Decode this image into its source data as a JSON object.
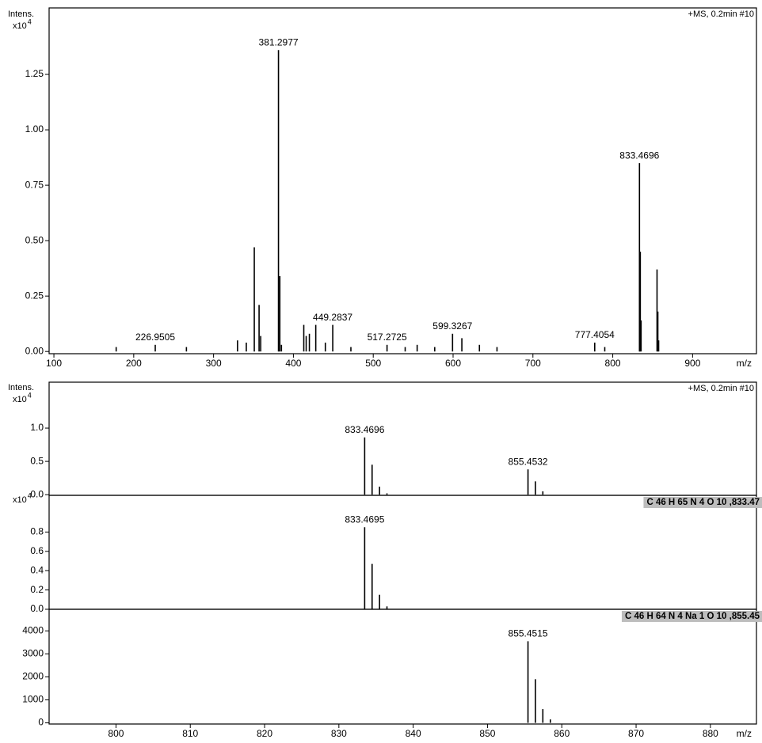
{
  "chart_data": [
    {
      "type": "stem",
      "subtitle": "+MS, 0.2min #10",
      "ylabel": "Intens.",
      "yunit": {
        "base": "x10",
        "exponent": 4
      },
      "xlabel": "m/z",
      "color": "#000000",
      "x": [
        178,
        226.9505,
        266,
        330,
        341,
        351,
        357,
        359,
        381.2977,
        383,
        385,
        413,
        416,
        420,
        428,
        440,
        449.2837,
        472,
        517.2725,
        540,
        555,
        577,
        599.3267,
        611,
        633,
        655,
        777.4054,
        790,
        833.4696,
        834.5,
        835.5,
        855.4532,
        856.5,
        857.5
      ],
      "x_labels": [
        null,
        "226.9505",
        null,
        null,
        null,
        null,
        null,
        null,
        "381.2977",
        null,
        null,
        null,
        null,
        null,
        null,
        null,
        "449.2837",
        null,
        "517.2725",
        null,
        null,
        null,
        "599.3267",
        null,
        null,
        null,
        "777.4054",
        null,
        "833.4696",
        null,
        null,
        null,
        null,
        null
      ],
      "values": [
        0.02,
        0.03,
        0.02,
        0.05,
        0.04,
        0.47,
        0.21,
        0.07,
        1.36,
        0.34,
        0.03,
        0.12,
        0.07,
        0.08,
        0.12,
        0.04,
        0.12,
        0.02,
        0.03,
        0.02,
        0.03,
        0.02,
        0.08,
        0.06,
        0.03,
        0.02,
        0.04,
        0.02,
        0.85,
        0.45,
        0.14,
        0.37,
        0.18,
        0.05
      ],
      "xlim": [
        94,
        980
      ],
      "xticks": [
        100,
        200,
        300,
        400,
        500,
        600,
        700,
        800,
        900
      ],
      "ylim": [
        -0.01,
        1.55
      ],
      "yticks": [
        {
          "value": 0,
          "label": "0.00"
        },
        {
          "value": 0.25,
          "label": "0.25"
        },
        {
          "value": 0.5,
          "label": "0.50"
        },
        {
          "value": 0.75,
          "label": "0.75"
        },
        {
          "value": 1,
          "label": "1.00"
        },
        {
          "value": 1.25,
          "label": "1.25"
        }
      ]
    },
    {
      "type": "stem",
      "subtitle": "+MS, 0.2min #10",
      "ylabel": "Intens.",
      "yunit": {
        "base": "x10",
        "exponent": 4
      },
      "color": "#000000",
      "x": [
        833.4696,
        834.47,
        835.47,
        836.47,
        855.4532,
        856.45,
        857.45
      ],
      "x_labels": [
        "833.4696",
        null,
        null,
        null,
        "855.4532",
        null,
        null
      ],
      "values": [
        0.86,
        0.45,
        0.12,
        0.02,
        0.38,
        0.2,
        0.05
      ],
      "xlim": [
        791,
        886.2
      ],
      "ylim": [
        -0.01,
        1.69
      ],
      "yticks": [
        {
          "value": 0,
          "label": "0.0"
        },
        {
          "value": 0.5,
          "label": "0.5"
        },
        {
          "value": 1,
          "label": "1.0"
        }
      ]
    },
    {
      "type": "stem",
      "title": "C 46 H 65 N 4 O 10 ,833.47",
      "yunit": {
        "base": "x10",
        "exponent": 4
      },
      "color": "#000000",
      "x": [
        833.4695,
        834.47,
        835.47,
        836.47
      ],
      "x_labels": [
        "833.4695",
        null,
        null,
        null
      ],
      "values": [
        0.85,
        0.47,
        0.15,
        0.03
      ],
      "xlim": [
        791,
        886.2
      ],
      "ylim": [
        0,
        1.18
      ],
      "yticks": [
        {
          "value": 0,
          "label": "0.0"
        },
        {
          "value": 0.2,
          "label": "0.2"
        },
        {
          "value": 0.4,
          "label": "0.4"
        },
        {
          "value": 0.6,
          "label": "0.6"
        },
        {
          "value": 0.8,
          "label": "0.8"
        }
      ]
    },
    {
      "type": "stem",
      "title": "C 46 H 64 N 4 Na 1 O 10 ,855.45",
      "xlabel": "m/z",
      "color": "#000000",
      "x": [
        855.4515,
        856.45,
        857.45,
        858.46
      ],
      "x_labels": [
        "855.4515",
        null,
        null,
        null
      ],
      "values": [
        3550,
        1900,
        600,
        150
      ],
      "xlim": [
        791,
        886.2
      ],
      "xticks": [
        800,
        810,
        820,
        830,
        840,
        850,
        860,
        870,
        880
      ],
      "ylim": [
        -50,
        4940
      ],
      "yticks": [
        0,
        1000,
        2000,
        3000,
        4000
      ]
    }
  ]
}
